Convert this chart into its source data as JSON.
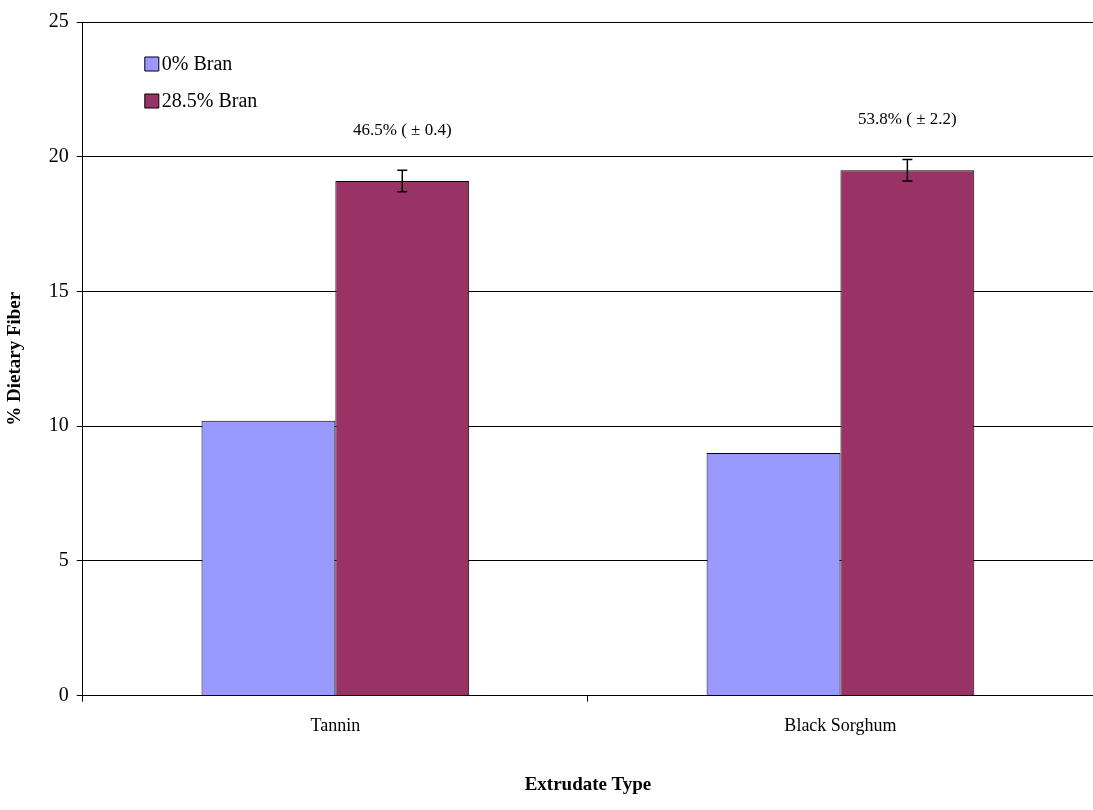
{
  "chart_data": {
    "type": "bar",
    "xlabel": "Extrudate Type",
    "ylabel": "% Dietary Fiber",
    "categories": [
      "Tannin",
      "Black Sorghum"
    ],
    "series": [
      {
        "name": "0% Bran",
        "color": "#9999ff",
        "values": [
          10.2,
          9.0
        ]
      },
      {
        "name": "28.5% Bran",
        "color": "#993366",
        "values": [
          19.1,
          19.5
        ],
        "errors": [
          0.4,
          0.4
        ]
      }
    ],
    "ylim": [
      0,
      25
    ],
    "yticks": [
      0,
      5,
      10,
      15,
      20,
      25
    ],
    "grid": "y",
    "legend": "top left",
    "annotations": [
      {
        "text": "46.5% ( ± 0.4)",
        "x": "Tannin",
        "y": 19.1
      },
      {
        "text": "53.8% ( ± 2.2)",
        "x": "Black Sorghum",
        "y": 19.5
      }
    ]
  }
}
